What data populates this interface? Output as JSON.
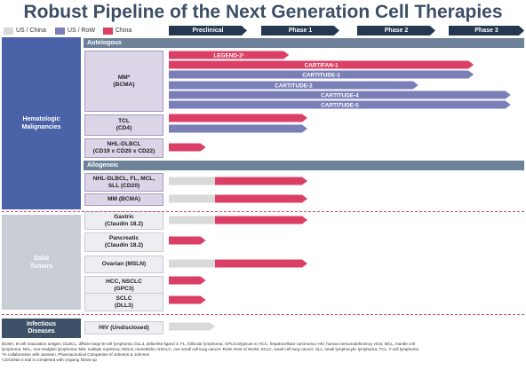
{
  "title": "Robust Pipeline of the Next Generation Cell Therapies",
  "colors": {
    "us_china": "#d9d9d9",
    "us_row": "#7a7fb8",
    "china": "#dc3f66",
    "phase_header": "#24384f",
    "section_bar": "#6d8199",
    "band_hematologic": "#4a63a8",
    "band_solid": "#c8cdd6",
    "band_infectious": "#3f5168"
  },
  "legend": [
    {
      "label": "US / China",
      "color": "#d9d9d9"
    },
    {
      "label": "US / RoW",
      "color": "#7a7fb8"
    },
    {
      "label": "China",
      "color": "#dc3f66"
    }
  ],
  "phases": [
    "Preclinical",
    "Phase 1",
    "Phase 2",
    "Phase 3"
  ],
  "sections": {
    "autologous": "Autologous",
    "allogeneic": "Allogeneic"
  },
  "categories": {
    "hematologic": "Hematologic\nMalignancies",
    "solid": "Solid\nTumors",
    "infectious": "Infectious\nDiseases"
  },
  "programs": {
    "mm_bcma": "MM*\n(BCMA)",
    "tcl_cd4": "TCL\n(CD4)",
    "nhl_dlbcl": "NHL-DLBCL\n(CD19 x CD20 x CD22)",
    "allo_nhl": "NHL-DLBCL, FL, MCL,\nSLL (CD20)",
    "allo_mm": "MM (BCMA)",
    "gastric": "Gastric\n(Claudin 18.2)",
    "pancreatic": "Pancreatic\n(Claudin 18.2)",
    "ovarian": "Ovarian (MSLN)",
    "hcc": "HCC, NSCLC\n(GPC3)",
    "sclc": "SCLC\n(DLL3)",
    "hiv": "HIV (Undisclosed)"
  },
  "pipeline_bars": [
    {
      "row": "mm_bcma",
      "label": "LEGEND-2¹",
      "color": "china",
      "phase_end": 1.3
    },
    {
      "row": "mm_bcma",
      "label": "CARTIFAN-1",
      "color": "china",
      "phase_end": 3.3
    },
    {
      "row": "mm_bcma",
      "label": "CARTITUDE-1",
      "color": "us_row",
      "phase_end": 3.3
    },
    {
      "row": "mm_bcma",
      "label": "CARTITUDE-2",
      "color": "us_row",
      "phase_end": 2.7
    },
    {
      "row": "mm_bcma",
      "label": "CARTITUDE-4",
      "color": "us_row",
      "phase_end": 3.7
    },
    {
      "row": "mm_bcma",
      "label": "CARTITUDE-5",
      "color": "us_row",
      "phase_end": 3.7
    },
    {
      "row": "tcl_cd4",
      "label": "",
      "color": "china",
      "phase_end": 1.5
    },
    {
      "row": "tcl_cd4",
      "label": "",
      "color": "us_row",
      "phase_end": 1.5
    },
    {
      "row": "nhl_dlbcl",
      "label": "",
      "color": "china",
      "phase_end": 0.4
    },
    {
      "row": "allo_nhl",
      "label": "",
      "color": "us_china",
      "phase_split": 0.5,
      "phase_end": 1.5
    },
    {
      "row": "allo_mm",
      "label": "",
      "color": "us_china",
      "phase_split": 0.5,
      "phase_end": 1.5
    },
    {
      "row": "gastric",
      "label": "",
      "color": "us_china",
      "phase_split": 0.5,
      "phase_end": 1.5
    },
    {
      "row": "pancreatic",
      "label": "",
      "color": "china",
      "phase_end": 0.4
    },
    {
      "row": "ovarian",
      "label": "",
      "color": "us_china",
      "phase_split": 0.5,
      "phase_end": 1.5
    },
    {
      "row": "hcc",
      "label": "",
      "color": "china",
      "phase_end": 0.4
    },
    {
      "row": "sclc",
      "label": "",
      "color": "china",
      "phase_end": 0.4
    },
    {
      "row": "hiv",
      "label": "",
      "color": "us_china",
      "phase_end": 0.5
    }
  ],
  "footnotes": [
    "BCMA, B-cell maturation antigen; DLBCL, diffuse large B-cell lymphoma; DLL3, delta-like ligand 3; FL, follicular lymphoma; GPC3,Glypican-3; HCC, hepatocellular carcinoma; HIV, human immunodeficiency virus; MCL, mantle cell",
    "lymphoma; NHL, non-Hodgkin lymphoma; MM, multiple myeloma; MSLN, mesothelin; NSCLC, non small cell lung cancer; RoW, Rest of World; SCLC, small cell lung cancer; SLL, small lymphocytic lymphoma; TCL, T-cell lymphoma",
    "*In collaboration with Janssen, Pharmaceutical Companies of Johnson & Johnson",
    "¹LEGEND-2 trial is completed with ongoing follow-up"
  ]
}
